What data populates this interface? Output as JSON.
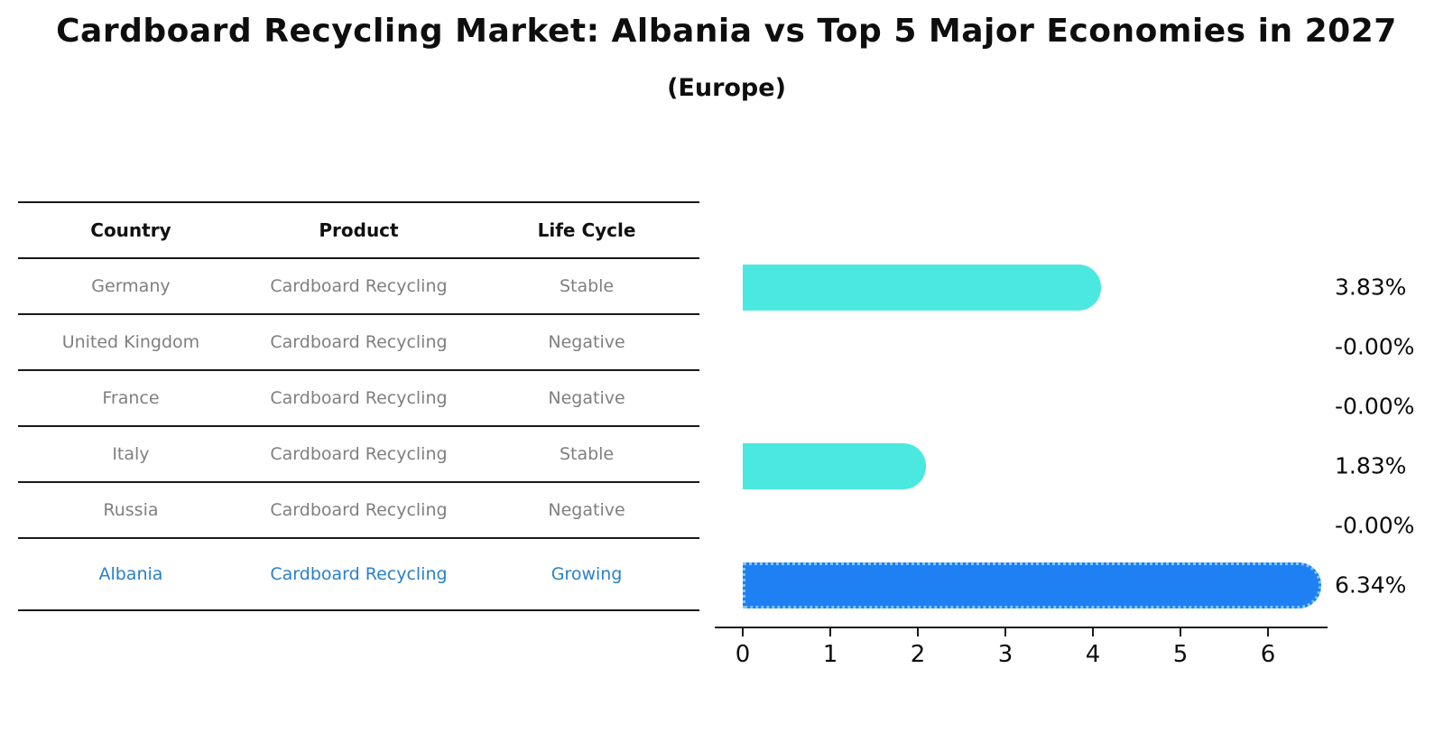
{
  "title": "Cardboard Recycling Market: Albania vs Top 5 Major Economies in 2027",
  "subtitle": "(Europe)",
  "table": {
    "headers": [
      "Country",
      "Product",
      "Life Cycle"
    ],
    "rows": [
      {
        "country": "Germany",
        "product": "Cardboard Recycling",
        "life_cycle": "Stable",
        "highlight": false
      },
      {
        "country": "United Kingdom",
        "product": "Cardboard Recycling",
        "life_cycle": "Negative",
        "highlight": false
      },
      {
        "country": "France",
        "product": "Cardboard Recycling",
        "life_cycle": "Negative",
        "highlight": false
      },
      {
        "country": "Italy",
        "product": "Cardboard Recycling",
        "life_cycle": "Stable",
        "highlight": false
      },
      {
        "country": "Russia",
        "product": "Cardboard Recycling",
        "life_cycle": "Negative",
        "highlight": false
      },
      {
        "country": "Albania",
        "product": "Cardboard Recycling",
        "life_cycle": "Growing",
        "highlight": true
      }
    ]
  },
  "chart_data": {
    "type": "bar",
    "orientation": "horizontal",
    "title": "Cardboard Recycling Market: Albania vs Top 5 Major Economies in 2027",
    "subtitle": "(Europe)",
    "categories": [
      "Germany",
      "United Kingdom",
      "France",
      "Italy",
      "Russia",
      "Albania"
    ],
    "values": [
      3.83,
      -0.0,
      -0.0,
      1.83,
      -0.0,
      6.34
    ],
    "value_labels": [
      "3.83%",
      "-0.00%",
      "-0.00%",
      "1.83%",
      "-0.00%",
      "6.34%"
    ],
    "x_ticks": [
      0,
      1,
      2,
      3,
      4,
      5,
      6
    ],
    "xlim": [
      -0.32,
      6.68
    ],
    "grid": false,
    "legend": "none",
    "highlight_index": 5,
    "colors": {
      "bar_normal": "#4be8e0",
      "bar_highlight": "#1e80f2",
      "bar_highlight_border": "#7ec6f6",
      "highlight_text": "#2980c9",
      "table_text": "#7f7f7f",
      "axis_text": "#0e0e0e"
    }
  }
}
